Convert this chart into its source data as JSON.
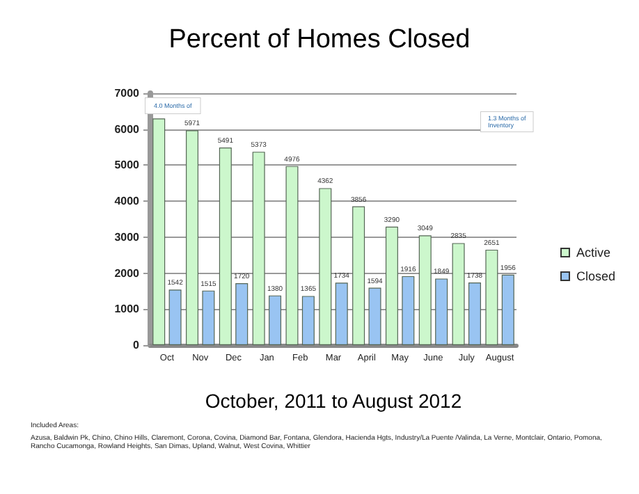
{
  "chart_data": {
    "type": "bar",
    "title": "Percent of Homes Closed",
    "xlabel": "October, 2011 to August 2012",
    "categories": [
      "Oct",
      "Nov",
      "Dec",
      "Jan",
      "Feb",
      "Mar",
      "April",
      "May",
      "June",
      "July",
      "August"
    ],
    "series": [
      {
        "name": "Active",
        "color": "#ccf7cc",
        "values": [
          6300,
          5971,
          5491,
          5373,
          4976,
          4362,
          3856,
          3290,
          3049,
          2835,
          2651
        ],
        "value_labels": [
          null,
          "5971",
          "5491",
          "5373",
          "4976",
          "4362",
          "3856",
          "3290",
          "3049",
          "2835",
          "2651"
        ]
      },
      {
        "name": "Closed",
        "color": "#99c4f2",
        "values": [
          1542,
          1515,
          1720,
          1380,
          1365,
          1734,
          1594,
          1916,
          1849,
          1738,
          1956
        ],
        "value_labels": [
          "1542",
          "1515",
          "1720",
          "1380",
          "1365",
          "1734",
          "1594",
          "1916",
          "1849",
          "1738",
          "1956"
        ]
      }
    ],
    "ylim": [
      0,
      7000
    ],
    "yticks": [
      0,
      1000,
      2000,
      3000,
      4000,
      5000,
      6000,
      7000
    ],
    "grid": "y",
    "legend": "right",
    "annotations": [
      "4.0 Months of",
      "1.3 Months of Inventory",
      "Included Areas:",
      "Azusa, Baldwin Pk, Chino, Chino Hills, Claremont, Corona, Covina, Diamond Bar, Fontana, Glendora, Hacienda Hgts, Industry/La Puente /Valinda, La Verne, Montclair, Ontario, Pomona, Rancho Cucamonga, Rowland Heights, San Dimas, Upland, Walnut, West Covina, Whittier"
    ]
  }
}
